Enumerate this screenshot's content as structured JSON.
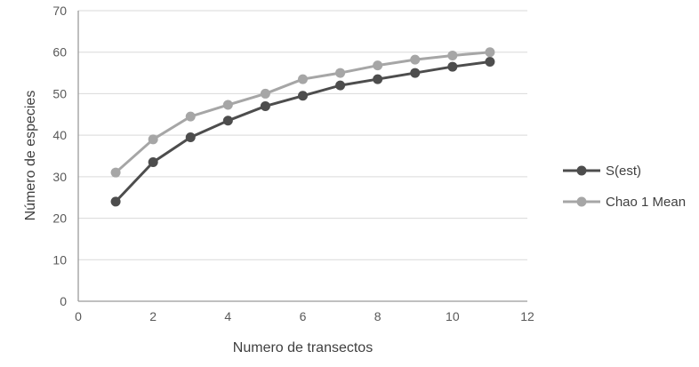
{
  "chart_data": {
    "type": "line",
    "title": "",
    "xlabel": "Numero de transectos",
    "ylabel": "Número de especies",
    "x": [
      1,
      2,
      3,
      4,
      5,
      6,
      7,
      8,
      9,
      10,
      11
    ],
    "series": [
      {
        "name": "S(est)",
        "color": "#4d4d4d",
        "values": [
          24,
          33.5,
          39.5,
          43.5,
          47,
          49.5,
          52,
          53.5,
          55,
          56.5,
          57.7
        ]
      },
      {
        "name": "Chao 1 Mean",
        "color": "#a6a6a6",
        "values": [
          31,
          39,
          44.5,
          47.3,
          50,
          53.5,
          55,
          56.8,
          58.2,
          59.2,
          60
        ]
      }
    ],
    "xlim": [
      0,
      12
    ],
    "ylim": [
      0,
      70
    ],
    "x_ticks": [
      0,
      2,
      4,
      6,
      8,
      10,
      12
    ],
    "y_ticks": [
      0,
      10,
      20,
      30,
      40,
      50,
      60,
      70
    ],
    "grid": true,
    "legend_position": "right",
    "colors": {
      "background": "#ffffff",
      "gridline": "#d9d9d9",
      "axis_line": "#9b9b9b",
      "tick_text": "#595959",
      "title_text": "#3f3f3f"
    }
  }
}
